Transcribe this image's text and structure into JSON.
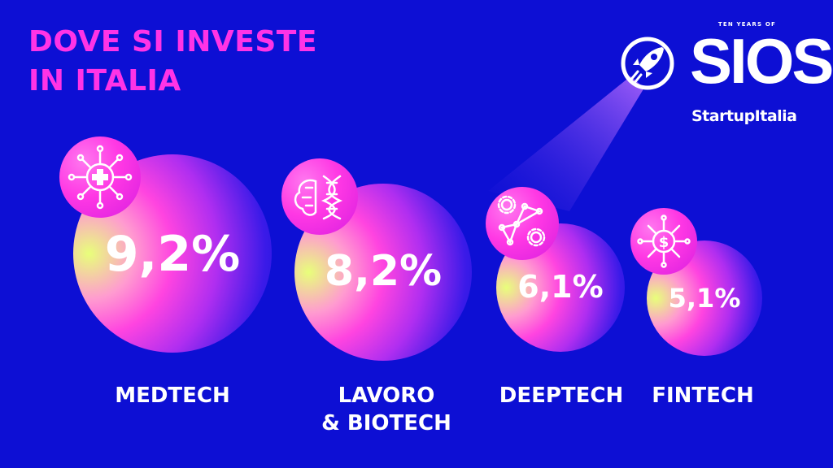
{
  "title": {
    "line1": "DOVE SI INVESTE",
    "line2": "IN ITALIA"
  },
  "logo": {
    "tagline": "TEN YEARS OF",
    "name": "SIOS",
    "brand": "StartupItalia"
  },
  "colors": {
    "background": "#0d0fd4",
    "accent": "#ff33e6",
    "text": "#ffffff"
  },
  "chart_data": {
    "type": "bubble",
    "title": "DOVE SI INVESTE IN ITALIA",
    "unit": "%",
    "categories": [
      "MEDTECH",
      "LAVORO & BIOTECH",
      "DEEPTECH",
      "FINTECH"
    ],
    "values": [
      9.2,
      8.2,
      6.1,
      5.1
    ],
    "value_labels": [
      "9,2%",
      "8,2%",
      "6,1%",
      "5,1%"
    ],
    "icons": [
      "medical-circuit-icon",
      "brain-dna-icon",
      "network-gears-icon",
      "dollar-circuit-icon"
    ]
  },
  "labels": {
    "medtech": "MEDTECH",
    "lavoro_line1": "LAVORO",
    "lavoro_line2": "& BIOTECH",
    "deeptech": "DEEPTECH",
    "fintech": "FINTECH"
  }
}
